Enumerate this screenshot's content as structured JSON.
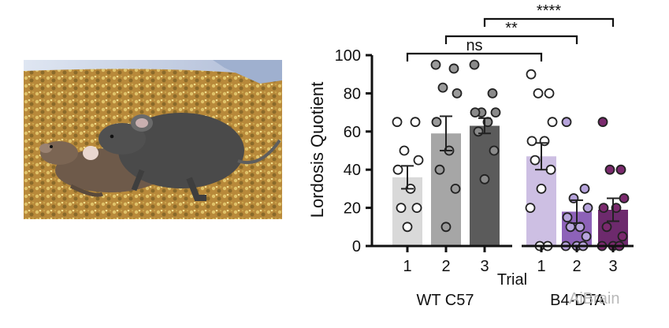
{
  "photo": {
    "description_icon": "mice-mating-illustration-icon"
  },
  "chart_data": {
    "type": "bar",
    "ylabel": "Lordosis  Quotient",
    "ylim": [
      0,
      100
    ],
    "yticks": [
      0,
      20,
      40,
      60,
      80,
      100
    ],
    "xlabel": "Trial",
    "categories": [
      "1",
      "2",
      "3",
      "1",
      "2",
      "3"
    ],
    "groups": [
      {
        "name": "WT  C57",
        "indices": [
          0,
          1,
          2
        ]
      },
      {
        "name": "B4-DTA",
        "indices": [
          3,
          4,
          5
        ]
      }
    ],
    "series": [
      {
        "values": [
          36,
          59,
          63,
          47,
          18,
          19
        ],
        "errors": [
          6,
          9,
          4,
          7,
          6,
          6
        ]
      }
    ],
    "points": [
      [
        65,
        65,
        50,
        45,
        40,
        30,
        20,
        20,
        10
      ],
      [
        95,
        93,
        83,
        80,
        65,
        50,
        40,
        30,
        10
      ],
      [
        95,
        80,
        70,
        70,
        70,
        65,
        60,
        50,
        35
      ],
      [
        90,
        80,
        80,
        65,
        55,
        55,
        45,
        40,
        30,
        20,
        0,
        0
      ],
      [
        65,
        30,
        25,
        20,
        15,
        10,
        10,
        5,
        0,
        0,
        0
      ],
      [
        65,
        40,
        40,
        25,
        20,
        20,
        10,
        5,
        0,
        0,
        0
      ]
    ],
    "bar_colors": [
      "#d9d9d9",
      "#a6a6a6",
      "#5b5b5b",
      "#cdbfe3",
      "#8d62b8",
      "#6d2a6d"
    ],
    "point_fills": [
      "#ffffff",
      "#9a9a9a",
      "#8a8a8a",
      "#ffffff",
      "#b7a4dc",
      "#7b2a6e"
    ],
    "annotations": [
      {
        "from": 0,
        "to": 3,
        "label": "ns"
      },
      {
        "from": 1,
        "to": 4,
        "label": "**"
      },
      {
        "from": 2,
        "to": 5,
        "label": "****"
      }
    ]
  },
  "watermark": "AiBrain"
}
